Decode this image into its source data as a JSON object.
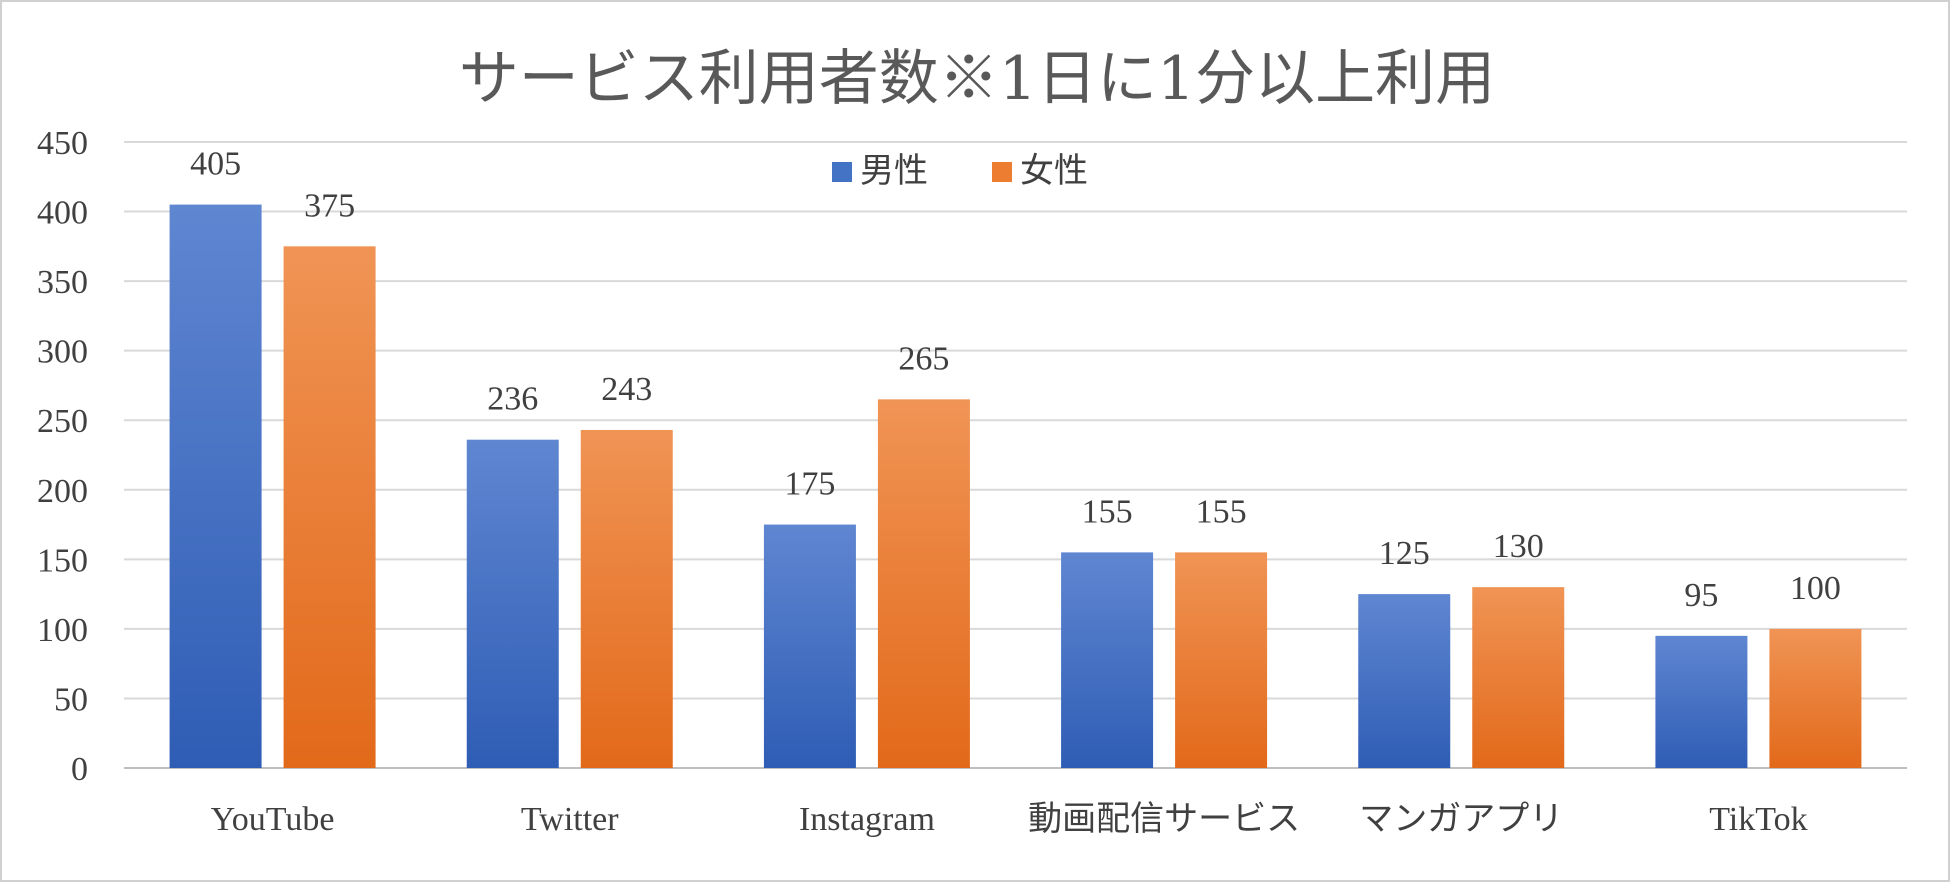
{
  "chart_data": {
    "type": "bar",
    "title": "サービス利用者数※1日に1分以上利用",
    "xlabel": "",
    "ylabel": "",
    "categories": [
      "YouTube",
      "Twitter",
      "Instagram",
      "動画配信サービス",
      "マンガアプリ",
      "TikTok"
    ],
    "series": [
      {
        "name": "男性",
        "values": [
          405,
          236,
          175,
          155,
          125,
          95
        ],
        "color": "#4472c4",
        "color_light": "#5f86d1",
        "color_dark": "#2f5db5"
      },
      {
        "name": "女性",
        "values": [
          375,
          243,
          265,
          155,
          130,
          100
        ],
        "color": "#ed7d31",
        "color_light": "#f09455",
        "color_dark": "#e2691a"
      }
    ],
    "ylim": [
      0,
      450
    ],
    "yticks": [
      0,
      50,
      100,
      150,
      200,
      250,
      300,
      350,
      400,
      450
    ],
    "grid": true,
    "legend_position": "top-center",
    "data_labels": true
  }
}
